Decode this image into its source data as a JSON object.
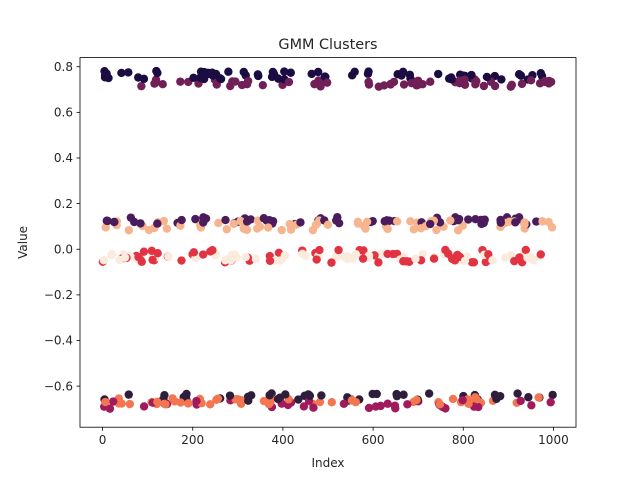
{
  "chart_data": {
    "type": "scatter",
    "title": "GMM Clusters",
    "xlabel": "Index",
    "ylabel": "Value",
    "xlim": [
      -50,
      1050
    ],
    "ylim": [
      -0.78,
      0.84
    ],
    "xticks": [
      "0",
      "200",
      "400",
      "600",
      "800",
      "1000"
    ],
    "xtick_values": [
      0,
      200,
      400,
      600,
      800,
      1000
    ],
    "yticks": [
      "−0.6",
      "−0.4",
      "−0.2",
      "0.0",
      "0.2",
      "0.4",
      "0.6",
      "0.8"
    ],
    "ytick_values": [
      -0.6,
      -0.4,
      -0.2,
      0.0,
      0.2,
      0.4,
      0.6,
      0.8
    ],
    "x_range": [
      0,
      999
    ],
    "series": [
      {
        "color": "#1b0c41",
        "center": 0.762,
        "spread": 0.012
      },
      {
        "color": "#701f57",
        "center": 0.728,
        "spread": 0.01
      },
      {
        "color": "#4a1c5c",
        "center": 0.125,
        "spread": 0.01
      },
      {
        "color": "#f6b48f",
        "center": 0.105,
        "spread": 0.014
      },
      {
        "color": "#e13342",
        "center": -0.03,
        "spread": 0.018
      },
      {
        "color": "#faebdd",
        "center": -0.035,
        "spread": 0.01
      },
      {
        "color": "#2e1e3b",
        "center": -0.648,
        "spread": 0.01
      },
      {
        "color": "#a11a5b",
        "center": -0.68,
        "spread": 0.012
      },
      {
        "color": "#f37651",
        "center": -0.665,
        "spread": 0.01
      }
    ]
  }
}
